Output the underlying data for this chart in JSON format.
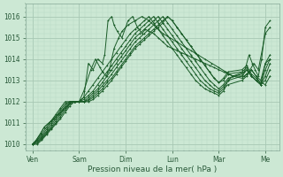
{
  "xlabel": "Pression niveau de la mer( hPa )",
  "ylim": [
    1009.7,
    1016.6
  ],
  "background_color": "#cce8d4",
  "plot_bg_color": "#cce8d4",
  "grid_major_color": "#a8c8b4",
  "grid_minor_color": "#b8d8c4",
  "line_color": "#1a5c28",
  "tick_labels_x": [
    "Ven",
    "Sam",
    "Dim",
    "Lun",
    "Mar",
    "Me"
  ],
  "tick_positions_x": [
    0,
    1,
    2,
    3,
    4,
    5
  ],
  "yticks": [
    1010,
    1011,
    1012,
    1013,
    1014,
    1015,
    1016
  ],
  "series": [
    {
      "x": [
        0.0,
        0.08,
        0.17,
        0.25,
        0.35,
        0.45,
        0.55,
        0.65,
        0.75,
        0.85,
        0.92,
        1.0,
        1.1,
        1.2,
        1.3,
        1.4,
        1.5,
        1.55,
        1.62,
        1.7,
        1.75,
        1.82,
        1.92,
        2.05,
        2.15,
        2.25,
        2.35,
        2.42,
        2.5,
        2.6,
        2.7,
        2.8,
        2.9,
        3.0,
        3.1,
        3.2,
        3.3,
        3.4,
        3.5,
        3.6,
        3.7,
        3.8,
        3.9,
        4.0,
        4.1,
        4.2,
        4.3,
        4.55,
        4.65,
        4.72,
        4.78,
        4.85,
        4.92,
        5.0,
        5.1
      ],
      "y": [
        1010.0,
        1010.2,
        1010.5,
        1010.8,
        1011.0,
        1011.2,
        1011.4,
        1011.6,
        1011.8,
        1012.0,
        1012.0,
        1012.0,
        1012.2,
        1013.8,
        1013.5,
        1014.0,
        1013.8,
        1014.2,
        1015.8,
        1016.0,
        1015.6,
        1015.3,
        1015.0,
        1015.8,
        1016.0,
        1015.5,
        1015.2,
        1015.4,
        1015.3,
        1015.2,
        1015.0,
        1014.8,
        1014.6,
        1014.5,
        1014.4,
        1014.3,
        1014.2,
        1014.1,
        1014.0,
        1013.9,
        1013.8,
        1013.7,
        1013.6,
        1013.5,
        1013.4,
        1013.3,
        1013.2,
        1013.4,
        1014.2,
        1013.8,
        1013.5,
        1013.2,
        1014.0,
        1015.5,
        1015.8
      ]
    },
    {
      "x": [
        0.0,
        0.08,
        0.17,
        0.25,
        0.35,
        0.45,
        0.55,
        0.65,
        0.75,
        0.85,
        0.92,
        1.0,
        1.1,
        1.25,
        1.35,
        1.45,
        1.5,
        1.58,
        1.65,
        1.75,
        1.85,
        1.92,
        2.05,
        2.2,
        2.35,
        2.5,
        2.65,
        2.8,
        2.95,
        3.1,
        3.25,
        3.4,
        3.55,
        3.7,
        3.85,
        4.0,
        4.15,
        4.3,
        4.55,
        4.65,
        4.75,
        4.85,
        5.0,
        5.1
      ],
      "y": [
        1010.0,
        1010.2,
        1010.5,
        1010.8,
        1011.0,
        1011.2,
        1011.4,
        1011.6,
        1011.8,
        1012.0,
        1012.0,
        1012.0,
        1012.5,
        1013.5,
        1014.0,
        1013.6,
        1013.4,
        1013.2,
        1013.5,
        1014.5,
        1015.0,
        1015.3,
        1015.6,
        1015.8,
        1016.0,
        1015.8,
        1015.5,
        1015.2,
        1015.0,
        1014.8,
        1014.6,
        1014.4,
        1014.2,
        1014.0,
        1013.8,
        1013.6,
        1013.4,
        1013.2,
        1013.2,
        1013.4,
        1013.8,
        1013.5,
        1015.2,
        1015.5
      ]
    },
    {
      "x": [
        0.0,
        0.1,
        0.2,
        0.3,
        0.4,
        0.5,
        0.6,
        0.7,
        0.8,
        0.9,
        1.0,
        1.1,
        1.2,
        1.3,
        1.4,
        1.5,
        1.6,
        1.7,
        1.8,
        1.9,
        2.0,
        2.1,
        2.2,
        2.3,
        2.4,
        2.5,
        2.6,
        2.7,
        2.8,
        2.9,
        3.0,
        3.1,
        3.2,
        3.3,
        3.4,
        3.5,
        3.6,
        3.7,
        3.8,
        3.9,
        4.0,
        4.1,
        4.2,
        4.3,
        4.5,
        4.6,
        4.7,
        4.8,
        4.9,
        5.0,
        5.1
      ],
      "y": [
        1010.0,
        1010.2,
        1010.5,
        1010.8,
        1011.1,
        1011.4,
        1011.7,
        1012.0,
        1012.0,
        1012.0,
        1012.0,
        1012.2,
        1012.5,
        1012.8,
        1013.1,
        1013.4,
        1013.7,
        1014.0,
        1014.3,
        1014.6,
        1014.9,
        1015.2,
        1015.4,
        1015.6,
        1015.8,
        1016.0,
        1015.7,
        1015.4,
        1015.1,
        1014.8,
        1014.5,
        1014.2,
        1013.9,
        1013.6,
        1013.3,
        1013.0,
        1012.8,
        1012.6,
        1012.5,
        1012.4,
        1012.3,
        1012.5,
        1013.0,
        1013.2,
        1013.1,
        1013.3,
        1013.5,
        1013.2,
        1012.8,
        1013.8,
        1014.0
      ]
    },
    {
      "x": [
        0.0,
        0.1,
        0.2,
        0.3,
        0.4,
        0.5,
        0.6,
        0.7,
        0.8,
        0.9,
        1.0,
        1.1,
        1.2,
        1.3,
        1.4,
        1.5,
        1.6,
        1.7,
        1.8,
        1.9,
        2.0,
        2.1,
        2.2,
        2.3,
        2.4,
        2.5,
        2.6,
        2.7,
        2.8,
        2.9,
        3.0,
        3.1,
        3.2,
        3.3,
        3.4,
        3.5,
        3.6,
        3.7,
        3.8,
        3.9,
        4.0,
        4.1,
        4.2,
        4.5,
        4.6,
        4.7,
        4.8,
        4.9,
        5.0,
        5.1
      ],
      "y": [
        1010.0,
        1010.2,
        1010.4,
        1010.7,
        1011.0,
        1011.3,
        1011.6,
        1011.9,
        1012.0,
        1012.0,
        1012.0,
        1012.1,
        1012.3,
        1012.5,
        1012.8,
        1013.1,
        1013.4,
        1013.7,
        1014.0,
        1014.3,
        1014.6,
        1014.9,
        1015.2,
        1015.4,
        1015.6,
        1015.8,
        1016.0,
        1015.7,
        1015.4,
        1015.1,
        1014.8,
        1014.5,
        1014.2,
        1013.9,
        1013.6,
        1013.3,
        1013.0,
        1012.8,
        1012.6,
        1012.5,
        1012.4,
        1012.6,
        1012.8,
        1013.0,
        1013.2,
        1013.5,
        1013.2,
        1013.0,
        1013.8,
        1014.2
      ]
    },
    {
      "x": [
        0.0,
        0.1,
        0.2,
        0.3,
        0.4,
        0.5,
        0.6,
        0.7,
        0.8,
        0.9,
        1.0,
        1.1,
        1.2,
        1.3,
        1.4,
        1.5,
        1.6,
        1.7,
        1.8,
        1.9,
        2.0,
        2.1,
        2.2,
        2.3,
        2.4,
        2.5,
        2.6,
        2.7,
        2.8,
        2.9,
        3.0,
        3.1,
        3.2,
        3.3,
        3.4,
        3.5,
        3.6,
        3.7,
        3.8,
        3.9,
        4.0,
        4.1,
        4.2,
        4.5,
        4.6,
        4.7,
        4.8,
        4.9,
        5.0,
        5.1
      ],
      "y": [
        1010.0,
        1010.15,
        1010.35,
        1010.6,
        1010.9,
        1011.2,
        1011.5,
        1011.8,
        1012.0,
        1012.0,
        1012.0,
        1012.0,
        1012.2,
        1012.4,
        1012.6,
        1012.9,
        1013.2,
        1013.5,
        1013.8,
        1014.1,
        1014.4,
        1014.7,
        1015.0,
        1015.2,
        1015.4,
        1015.6,
        1015.8,
        1016.0,
        1015.7,
        1015.4,
        1015.1,
        1014.8,
        1014.5,
        1014.2,
        1013.9,
        1013.6,
        1013.3,
        1013.0,
        1012.8,
        1012.6,
        1012.5,
        1012.7,
        1013.0,
        1013.2,
        1013.5,
        1013.2,
        1013.0,
        1012.8,
        1013.5,
        1014.0
      ]
    },
    {
      "x": [
        0.0,
        0.1,
        0.2,
        0.3,
        0.4,
        0.5,
        0.6,
        0.7,
        0.8,
        0.9,
        1.0,
        1.1,
        1.2,
        1.3,
        1.4,
        1.5,
        1.6,
        1.7,
        1.8,
        1.9,
        2.0,
        2.1,
        2.2,
        2.3,
        2.4,
        2.5,
        2.6,
        2.7,
        2.8,
        2.9,
        3.0,
        3.1,
        3.2,
        3.3,
        3.4,
        3.5,
        3.6,
        3.7,
        3.8,
        3.9,
        4.0,
        4.1,
        4.2,
        4.5,
        4.6,
        4.7,
        4.8,
        4.9,
        5.0,
        5.1
      ],
      "y": [
        1010.0,
        1010.1,
        1010.3,
        1010.55,
        1010.8,
        1011.1,
        1011.4,
        1011.7,
        1011.95,
        1012.0,
        1012.0,
        1012.0,
        1012.1,
        1012.3,
        1012.5,
        1012.75,
        1013.0,
        1013.3,
        1013.6,
        1013.9,
        1014.2,
        1014.5,
        1014.8,
        1015.0,
        1015.2,
        1015.4,
        1015.6,
        1015.8,
        1016.0,
        1015.7,
        1015.4,
        1015.1,
        1014.8,
        1014.5,
        1014.2,
        1013.9,
        1013.6,
        1013.3,
        1013.0,
        1012.8,
        1012.6,
        1012.8,
        1013.1,
        1013.3,
        1013.5,
        1013.2,
        1013.0,
        1012.8,
        1013.2,
        1013.8
      ]
    },
    {
      "x": [
        0.0,
        0.1,
        0.2,
        0.3,
        0.4,
        0.5,
        0.6,
        0.7,
        0.8,
        0.9,
        1.0,
        1.1,
        1.2,
        1.3,
        1.4,
        1.5,
        1.6,
        1.7,
        1.8,
        1.9,
        2.0,
        2.1,
        2.2,
        2.3,
        2.4,
        2.5,
        2.6,
        2.7,
        2.8,
        2.9,
        3.0,
        3.1,
        3.2,
        3.3,
        3.4,
        3.5,
        3.6,
        3.7,
        3.8,
        3.9,
        4.0,
        4.1,
        4.2,
        4.5,
        4.6,
        4.7,
        4.8,
        4.9,
        5.0,
        5.1
      ],
      "y": [
        1010.0,
        1010.05,
        1010.25,
        1010.5,
        1010.75,
        1011.0,
        1011.3,
        1011.6,
        1011.9,
        1012.0,
        1012.0,
        1012.0,
        1012.05,
        1012.2,
        1012.4,
        1012.6,
        1012.9,
        1013.1,
        1013.4,
        1013.7,
        1014.0,
        1014.3,
        1014.6,
        1014.8,
        1015.0,
        1015.2,
        1015.4,
        1015.6,
        1015.8,
        1016.0,
        1015.8,
        1015.5,
        1015.2,
        1014.9,
        1014.6,
        1014.3,
        1014.0,
        1013.7,
        1013.4,
        1013.1,
        1012.9,
        1013.0,
        1013.3,
        1013.4,
        1013.6,
        1013.2,
        1013.0,
        1012.8,
        1013.0,
        1013.5
      ]
    },
    {
      "x": [
        0.0,
        0.1,
        0.2,
        0.3,
        0.4,
        0.5,
        0.6,
        0.7,
        0.8,
        0.9,
        1.0,
        1.1,
        1.2,
        1.3,
        1.4,
        1.5,
        1.6,
        1.7,
        1.8,
        1.9,
        2.0,
        2.1,
        2.2,
        2.3,
        2.4,
        2.5,
        2.6,
        2.7,
        2.8,
        2.9,
        3.0,
        3.1,
        3.2,
        3.3,
        3.4,
        3.5,
        3.6,
        3.7,
        3.8,
        3.9,
        4.0,
        4.1,
        4.2,
        4.5,
        4.6,
        4.7,
        4.8,
        4.9,
        5.0,
        5.1
      ],
      "y": [
        1010.0,
        1010.0,
        1010.2,
        1010.45,
        1010.7,
        1010.95,
        1011.2,
        1011.5,
        1011.8,
        1012.0,
        1012.0,
        1012.0,
        1012.0,
        1012.1,
        1012.3,
        1012.5,
        1012.75,
        1013.0,
        1013.3,
        1013.6,
        1013.9,
        1014.2,
        1014.5,
        1014.7,
        1014.9,
        1015.1,
        1015.3,
        1015.5,
        1015.7,
        1016.0,
        1015.8,
        1015.5,
        1015.2,
        1014.9,
        1014.6,
        1014.3,
        1014.0,
        1013.7,
        1013.4,
        1013.1,
        1012.9,
        1013.1,
        1013.4,
        1013.5,
        1013.7,
        1013.3,
        1013.1,
        1012.9,
        1012.8,
        1013.2
      ]
    }
  ]
}
